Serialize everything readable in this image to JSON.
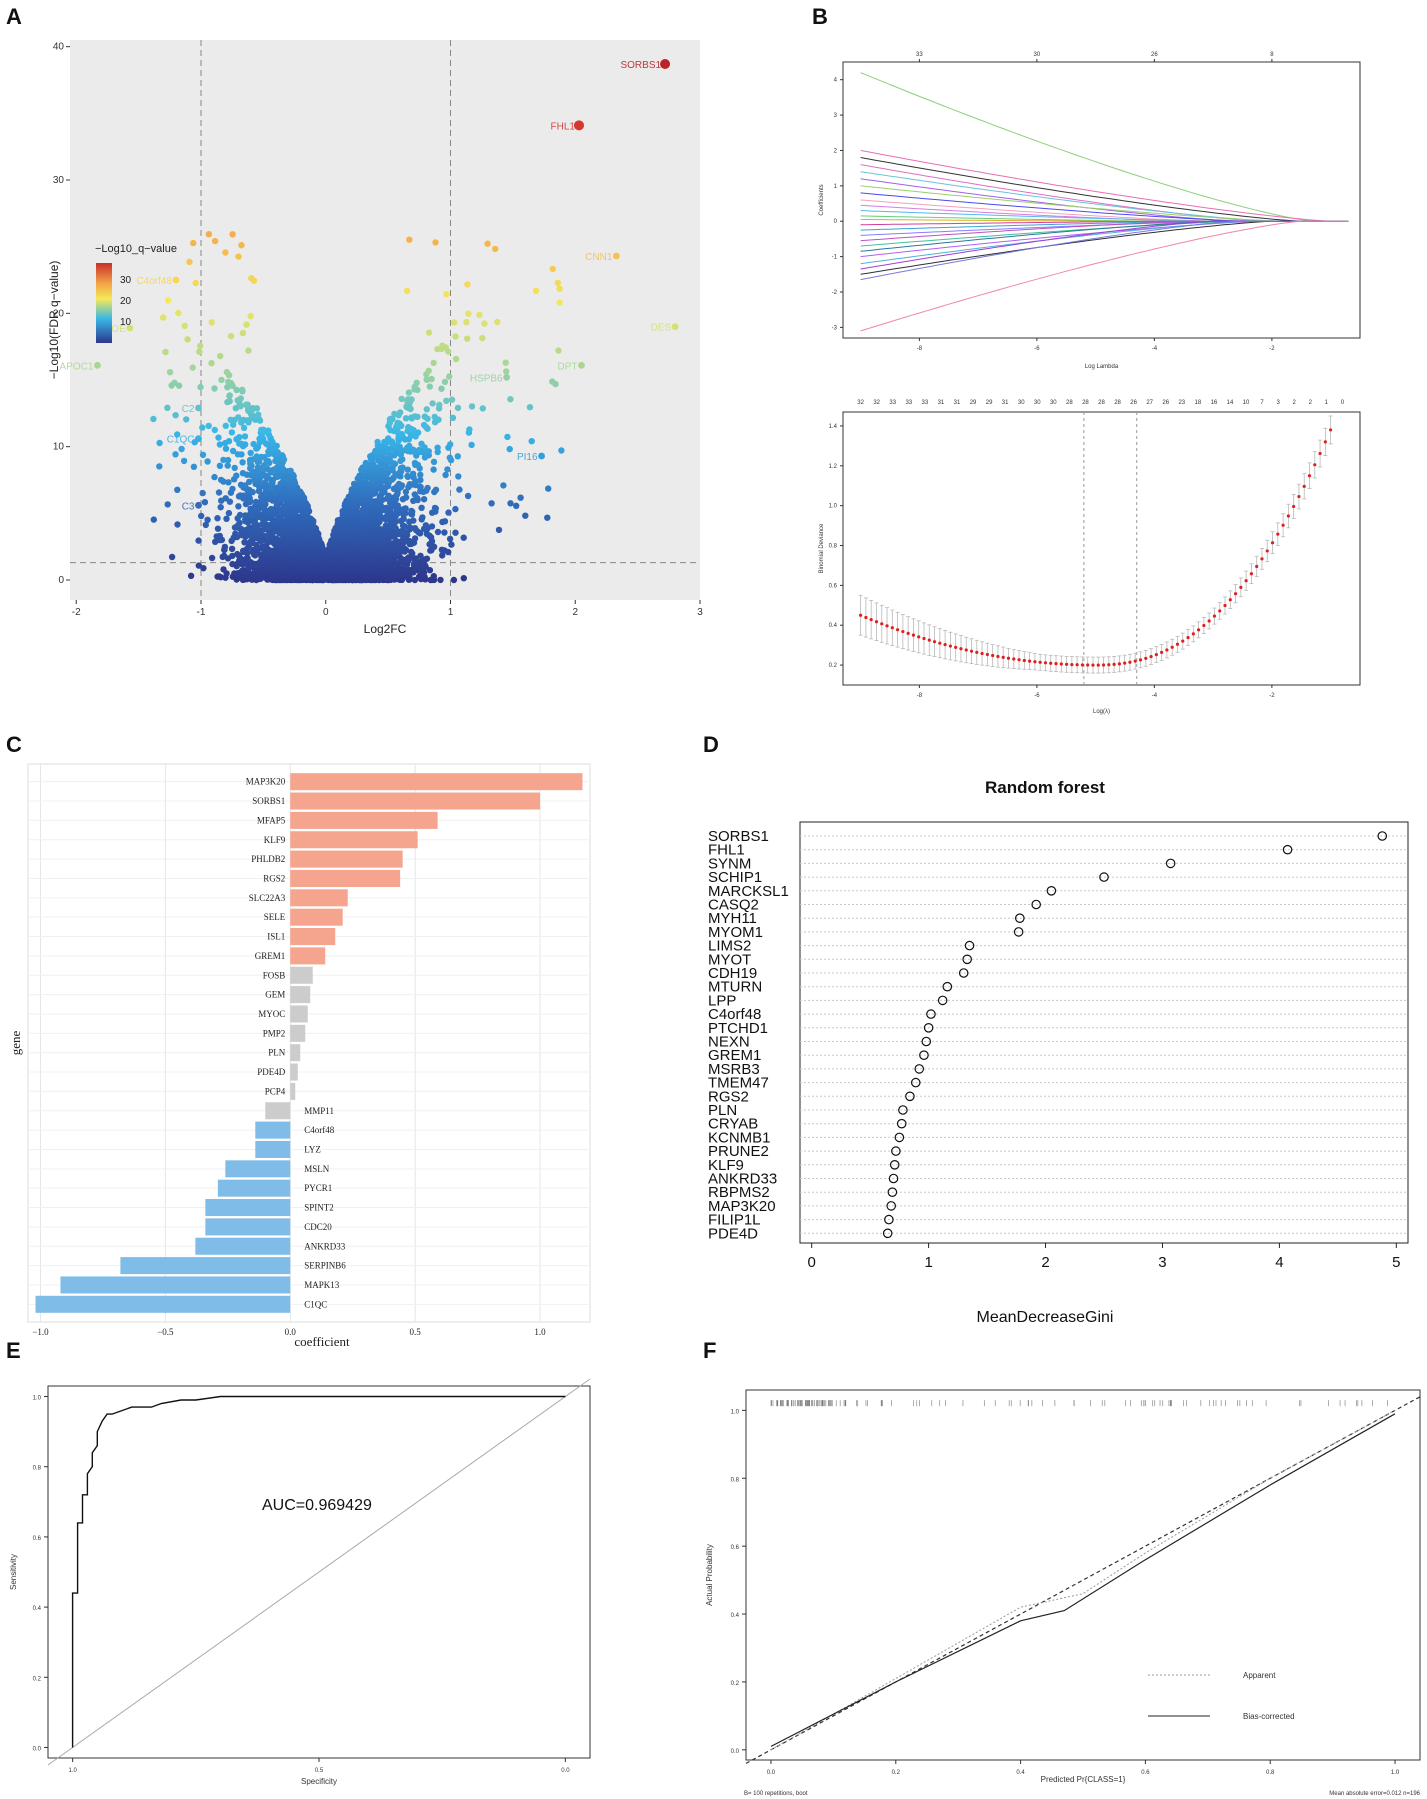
{
  "figure": {
    "panels": [
      "A",
      "B",
      "C",
      "D",
      "E",
      "F"
    ]
  },
  "chart_data": [
    {
      "panel": "A",
      "type": "scatter",
      "title": "",
      "xlabel": "Log2FC",
      "ylabel": "−Log10(FDR q−value)",
      "xlim": [
        -2.05,
        3.0
      ],
      "ylim": [
        -1.5,
        40.5
      ],
      "xticks": [
        -2,
        -1,
        0,
        1,
        2,
        3
      ],
      "yticks": [
        0,
        10,
        20,
        30,
        40
      ],
      "thresholds": {
        "x": [
          -1,
          1
        ],
        "y": 1.3
      },
      "legend": {
        "title": "−Log10_q−value",
        "ticks": [
          10,
          20,
          30
        ],
        "range": [
          0,
          38
        ]
      },
      "labeled_points": [
        {
          "label": "SORBS1",
          "x": 2.72,
          "y": 38.7
        },
        {
          "label": "FHL1",
          "x": 2.03,
          "y": 34.1
        },
        {
          "label": "CNN1",
          "x": 2.33,
          "y": 24.3
        },
        {
          "label": "DES",
          "x": 2.8,
          "y": 19.0
        },
        {
          "label": "DPT",
          "x": 2.05,
          "y": 16.1
        },
        {
          "label": "HSPB6",
          "x": 1.45,
          "y": 15.2
        },
        {
          "label": "PI16",
          "x": 1.73,
          "y": 9.3
        },
        {
          "label": "C4orf48",
          "x": -1.2,
          "y": 22.5
        },
        {
          "label": "APOE",
          "x": -1.57,
          "y": 18.9
        },
        {
          "label": "APOC1",
          "x": -1.83,
          "y": 16.1
        },
        {
          "label": "C2",
          "x": -1.02,
          "y": 12.9
        },
        {
          "label": "C1QC",
          "x": -1.02,
          "y": 10.6
        },
        {
          "label": "C3",
          "x": -1.02,
          "y": 5.6
        }
      ]
    },
    {
      "panel": "B-top",
      "type": "line",
      "title": "",
      "xlabel": "Log Lambda",
      "ylabel": "Coefficients",
      "xlim": [
        -9.3,
        -0.5
      ],
      "ylim": [
        -3.3,
        4.5
      ],
      "xticks": [
        -8,
        -6,
        -4,
        -2
      ],
      "yticks": [
        -3,
        -2,
        -1,
        0,
        1,
        2,
        3,
        4
      ],
      "top_ticks": [
        {
          "x": -8,
          "label": "33"
        },
        {
          "x": -6,
          "label": "30"
        },
        {
          "x": -4,
          "label": "26"
        },
        {
          "x": -2,
          "label": "8"
        }
      ],
      "series": [
        {
          "name": "path1",
          "start": 4.2,
          "vanish": -1.3
        },
        {
          "name": "path2",
          "start": 2.0,
          "vanish": -1.0
        },
        {
          "name": "path3",
          "start": 1.8,
          "vanish": -1.5
        },
        {
          "name": "path4",
          "start": 1.6,
          "vanish": -2.2
        },
        {
          "name": "path5",
          "start": 1.4,
          "vanish": -2.0
        },
        {
          "name": "path6",
          "start": 1.2,
          "vanish": -2.6
        },
        {
          "name": "path7",
          "start": 1.0,
          "vanish": -1.8
        },
        {
          "name": "path8",
          "start": 0.8,
          "vanish": -2.4
        },
        {
          "name": "path9",
          "start": 0.6,
          "vanish": -3.0
        },
        {
          "name": "path10",
          "start": 0.45,
          "vanish": -3.4
        },
        {
          "name": "path11",
          "start": 0.3,
          "vanish": -2.8
        },
        {
          "name": "path12",
          "start": 0.15,
          "vanish": -3.8
        },
        {
          "name": "path13",
          "start": 0.05,
          "vanish": -4.2
        },
        {
          "name": "path14",
          "start": -0.1,
          "vanish": -3.6
        },
        {
          "name": "path15",
          "start": -0.25,
          "vanish": -3.1
        },
        {
          "name": "path16",
          "start": -0.4,
          "vanish": -2.7
        },
        {
          "name": "path17",
          "start": -0.55,
          "vanish": -3.3
        },
        {
          "name": "path18",
          "start": -0.7,
          "vanish": -2.5
        },
        {
          "name": "path19",
          "start": -0.85,
          "vanish": -2.9
        },
        {
          "name": "path20",
          "start": -1.0,
          "vanish": -2.2
        },
        {
          "name": "path21",
          "start": -1.2,
          "vanish": -2.4
        },
        {
          "name": "path22",
          "start": -1.35,
          "vanish": -3.0
        },
        {
          "name": "path23",
          "start": -1.5,
          "vanish": -2.0
        },
        {
          "name": "path24",
          "start": -1.65,
          "vanish": -2.6
        },
        {
          "name": "path25",
          "start": -3.1,
          "vanish": -1.5
        }
      ]
    },
    {
      "panel": "B-bottom",
      "type": "line",
      "title": "",
      "xlabel": "Log(λ)",
      "ylabel": "Binomial Deviance",
      "xlim": [
        -9.3,
        -0.5
      ],
      "ylim": [
        0.1,
        1.47
      ],
      "xticks": [
        -8,
        -6,
        -4,
        -2
      ],
      "yticks": [
        0.2,
        0.4,
        0.6,
        0.8,
        1.0,
        1.2,
        1.4
      ],
      "vlines": [
        -5.2,
        -4.3
      ],
      "top_labels": [
        "32",
        "32",
        "33",
        "33",
        "33",
        "31",
        "31",
        "29",
        "29",
        "31",
        "30",
        "30",
        "30",
        "28",
        "28",
        "28",
        "28",
        "26",
        "27",
        "26",
        "23",
        "18",
        "16",
        "14",
        "10",
        "7",
        "3",
        "2",
        "2",
        "1",
        "0"
      ],
      "dev_function": {
        "min_x": -5.0,
        "min_y": 0.2,
        "left_x": -9.0,
        "left_y": 0.45,
        "right_x": -1.0,
        "right_y": 1.38
      }
    },
    {
      "panel": "C",
      "type": "bar",
      "title": "",
      "xlabel": "coefficient",
      "ylabel": "gene",
      "xlim": [
        -1.05,
        1.2
      ],
      "xticks": [
        -1.0,
        -0.5,
        0.0,
        0.5,
        1.0
      ],
      "tick_labels": [
        "−1.0",
        "−0.5",
        "0.0",
        "0.5",
        "1.0"
      ],
      "categories": [
        "MAP3K20",
        "SORBS1",
        "MFAP5",
        "KLF9",
        "PHLDB2",
        "RGS2",
        "SLC22A3",
        "SELE",
        "ISL1",
        "GREM1",
        "FOSB",
        "GEM",
        "MYOC",
        "PMP2",
        "PLN",
        "PDE4D",
        "PCP4",
        "MMP11",
        "C4orf48",
        "LYZ",
        "MSLN",
        "PYCR1",
        "SPINT2",
        "CDC20",
        "ANKRD33",
        "SERPINB6",
        "MAPK13",
        "C1QC"
      ],
      "values": [
        1.17,
        1.0,
        0.59,
        0.51,
        0.45,
        0.44,
        0.23,
        0.21,
        0.18,
        0.14,
        0.09,
        0.08,
        0.07,
        0.06,
        0.04,
        0.03,
        0.02,
        -0.1,
        -0.14,
        -0.14,
        -0.26,
        -0.29,
        -0.34,
        -0.34,
        -0.38,
        -0.68,
        -0.92,
        -1.02
      ],
      "colors": {
        "positive": "#f5a58e",
        "negative": "#7fbde8",
        "near_zero": "#cccccc"
      }
    },
    {
      "panel": "D",
      "type": "scatter",
      "title": "Random forest",
      "xlabel": "MeanDecreaseGini",
      "ylabel": "",
      "xlim": [
        0,
        5.1
      ],
      "xticks": [
        0,
        1,
        2,
        3,
        4,
        5
      ],
      "categories": [
        "SORBS1",
        "FHL1",
        "SYNM",
        "SCHIP1",
        "MARCKSL1",
        "CASQ2",
        "MYH11",
        "MYOM1",
        "LIMS2",
        "MYOT",
        "CDH19",
        "MTURN",
        "LPP",
        "C4orf48",
        "PTCHD1",
        "NEXN",
        "GREM1",
        "MSRB3",
        "TMEM47",
        "RGS2",
        "PLN",
        "CRYAB",
        "KCNMB1",
        "PRUNE2",
        "KLF9",
        "ANKRD33",
        "RBPMS2",
        "MAP3K20",
        "FILIP1L",
        "PDE4D"
      ],
      "values": [
        4.88,
        4.07,
        3.07,
        2.5,
        2.05,
        1.92,
        1.78,
        1.77,
        1.35,
        1.33,
        1.3,
        1.16,
        1.12,
        1.02,
        1.0,
        0.98,
        0.96,
        0.92,
        0.89,
        0.84,
        0.78,
        0.77,
        0.75,
        0.72,
        0.71,
        0.7,
        0.69,
        0.68,
        0.66,
        0.65
      ]
    },
    {
      "panel": "E",
      "type": "line",
      "title": "",
      "xlabel": "Specificity",
      "ylabel": "Sensitivity",
      "xlim": [
        1.05,
        -0.05
      ],
      "ylim": [
        -0.03,
        1.03
      ],
      "xticks": [
        1.0,
        0.5,
        0.0
      ],
      "yticks": [
        0.0,
        0.2,
        0.4,
        0.6,
        0.8,
        1.0
      ],
      "annotation": "AUC=0.969429",
      "roc": [
        [
          1.0,
          0.0
        ],
        [
          1.0,
          0.44
        ],
        [
          0.99,
          0.44
        ],
        [
          0.99,
          0.64
        ],
        [
          0.98,
          0.64
        ],
        [
          0.98,
          0.72
        ],
        [
          0.97,
          0.72
        ],
        [
          0.97,
          0.78
        ],
        [
          0.96,
          0.8
        ],
        [
          0.96,
          0.84
        ],
        [
          0.95,
          0.86
        ],
        [
          0.95,
          0.9
        ],
        [
          0.94,
          0.93
        ],
        [
          0.93,
          0.95
        ],
        [
          0.92,
          0.95
        ],
        [
          0.9,
          0.96
        ],
        [
          0.88,
          0.97
        ],
        [
          0.84,
          0.97
        ],
        [
          0.82,
          0.98
        ],
        [
          0.78,
          0.99
        ],
        [
          0.75,
          0.99
        ],
        [
          0.7,
          1.0
        ],
        [
          0.0,
          1.0
        ]
      ]
    },
    {
      "panel": "F",
      "type": "line",
      "title": "",
      "xlabel": "Predicted Pr{CLASS=1}",
      "ylabel": "Actual Probability",
      "xlim": [
        -0.04,
        1.04
      ],
      "ylim": [
        -0.03,
        1.06
      ],
      "xticks": [
        0.0,
        0.2,
        0.4,
        0.6,
        0.8,
        1.0
      ],
      "yticks": [
        0.0,
        0.2,
        0.4,
        0.6,
        0.8,
        1.0
      ],
      "legend": [
        "Apparent",
        "Bias-corrected"
      ],
      "footnote_left": "B= 100 repetitions, boot",
      "footnote_right": "Mean absolute error=0.012 n=196",
      "series": [
        {
          "name": "Apparent",
          "x": [
            0.0,
            0.2,
            0.4,
            0.5,
            0.6,
            0.8,
            1.0
          ],
          "y": [
            0.0,
            0.21,
            0.42,
            0.46,
            0.58,
            0.8,
            1.0
          ]
        },
        {
          "name": "Bias-corrected",
          "x": [
            0.0,
            0.2,
            0.4,
            0.47,
            0.6,
            0.8,
            1.0
          ],
          "y": [
            0.01,
            0.2,
            0.38,
            0.41,
            0.56,
            0.78,
            0.99
          ]
        },
        {
          "name": "Ideal",
          "x": [
            -0.04,
            1.04
          ],
          "y": [
            -0.04,
            1.04
          ]
        }
      ]
    }
  ]
}
